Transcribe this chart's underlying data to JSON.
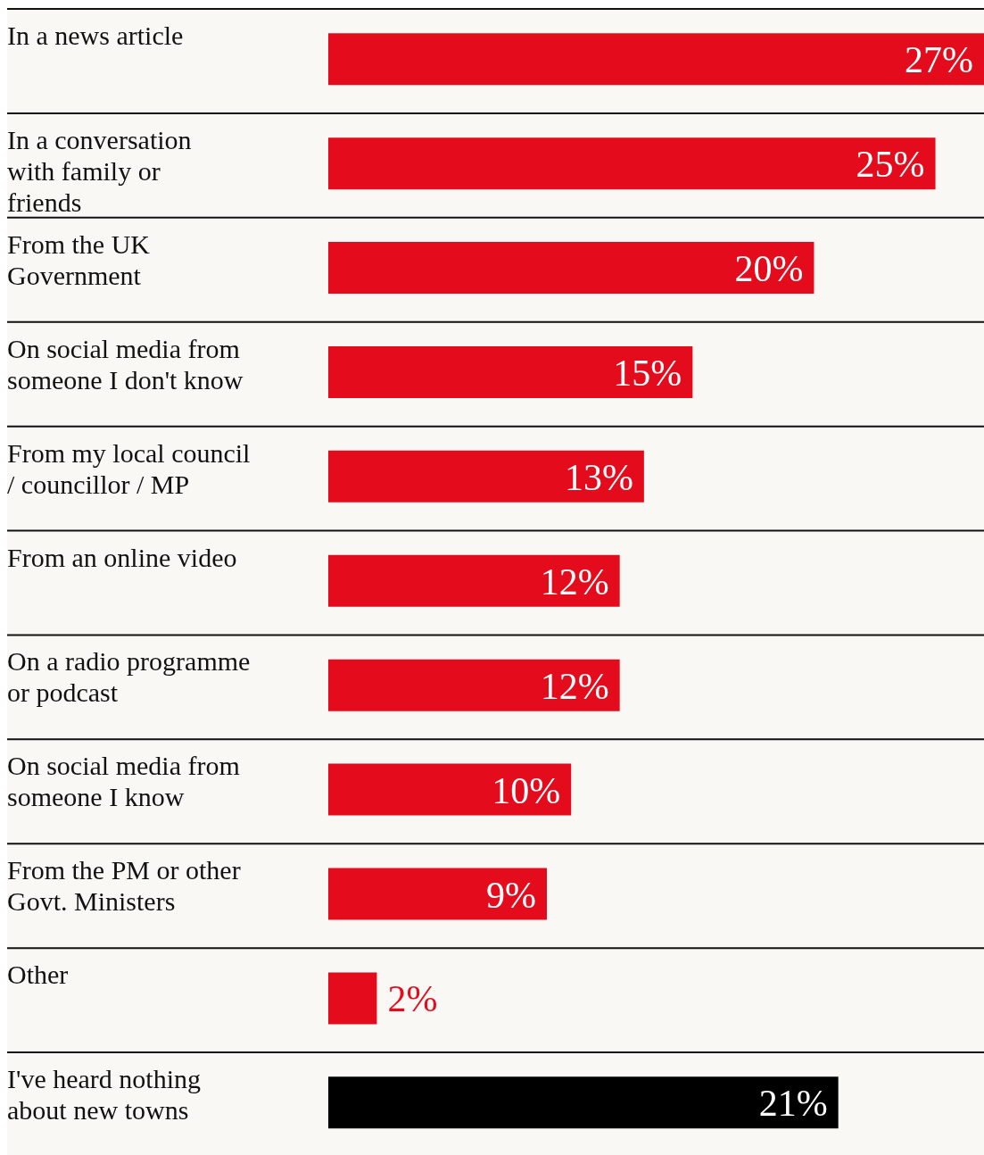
{
  "chart_data": {
    "type": "bar",
    "orientation": "horizontal",
    "categories": [
      "In a news article",
      "In a conversation with family or friends",
      "From the UK Government",
      "On social media from someone I don't know",
      "From my local council / councillor / MP",
      "From an online video",
      "On a radio programme or podcast",
      "On social media from someone I know",
      "From the PM or other Govt. Ministers",
      "Other",
      "I've heard nothing about new towns"
    ],
    "values": [
      27,
      25,
      20,
      15,
      13,
      12,
      12,
      10,
      9,
      2,
      21
    ],
    "colors": [
      "#e30b1c",
      "#e30b1c",
      "#e30b1c",
      "#e30b1c",
      "#e30b1c",
      "#e30b1c",
      "#e30b1c",
      "#e30b1c",
      "#e30b1c",
      "#e30b1c",
      "#000000"
    ],
    "value_labels": [
      "27%",
      "25%",
      "20%",
      "15%",
      "13%",
      "12%",
      "12%",
      "10%",
      "9%",
      "2%",
      "21%"
    ]
  }
}
